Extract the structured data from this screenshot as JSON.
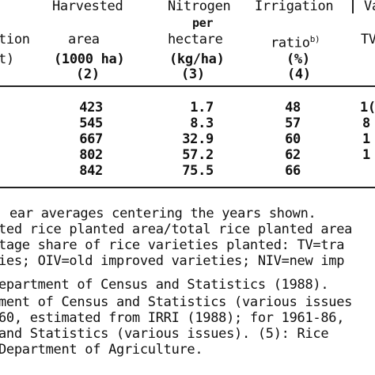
{
  "header": {
    "col1_partial": [
      "tion",
      "t)"
    ],
    "col2": {
      "line1": "Harvested",
      "line2": "area",
      "unit": "(1000 ha)",
      "num": "(2)"
    },
    "col3": {
      "line1": "Nitrogen",
      "line2": "per",
      "line3": "hectare",
      "unit": "(kg/ha)",
      "num": "(3)"
    },
    "col4": {
      "line1": "Irrigation",
      "line2": "ratio",
      "sup": "b)",
      "unit": "(%)",
      "num": "(4)"
    },
    "col5_partial": {
      "line1": "Va",
      "line2": "TV"
    }
  },
  "rows": [
    {
      "area": "423",
      "nitrogen": "1.7",
      "irrigation": "48",
      "partial": "1("
    },
    {
      "area": "545",
      "nitrogen": "8.3",
      "irrigation": "57",
      "partial": "8"
    },
    {
      "area": "667",
      "nitrogen": "32.9",
      "irrigation": "60",
      "partial": "1"
    },
    {
      "area": "802",
      "nitrogen": "57.2",
      "irrigation": "62",
      "partial": "1"
    },
    {
      "area": "842",
      "nitrogen": "75.5",
      "irrigation": "66",
      "partial": ""
    }
  ],
  "notes": [
    "ear averages centering the years shown.",
    "ted rice planted area/total rice planted area",
    "tage share of rice varieties planted: TV=tra",
    "ies; OIV=old improved varieties; NIV=new imp",
    "epartment of Census and Statistics (1988).",
    "ment of Census and Statistics (various issues",
    "60, estimated from IRRI (1988); for 1961-86, ",
    " and Statistics (various issues).  (5): Rice",
    " Department of Agriculture."
  ]
}
